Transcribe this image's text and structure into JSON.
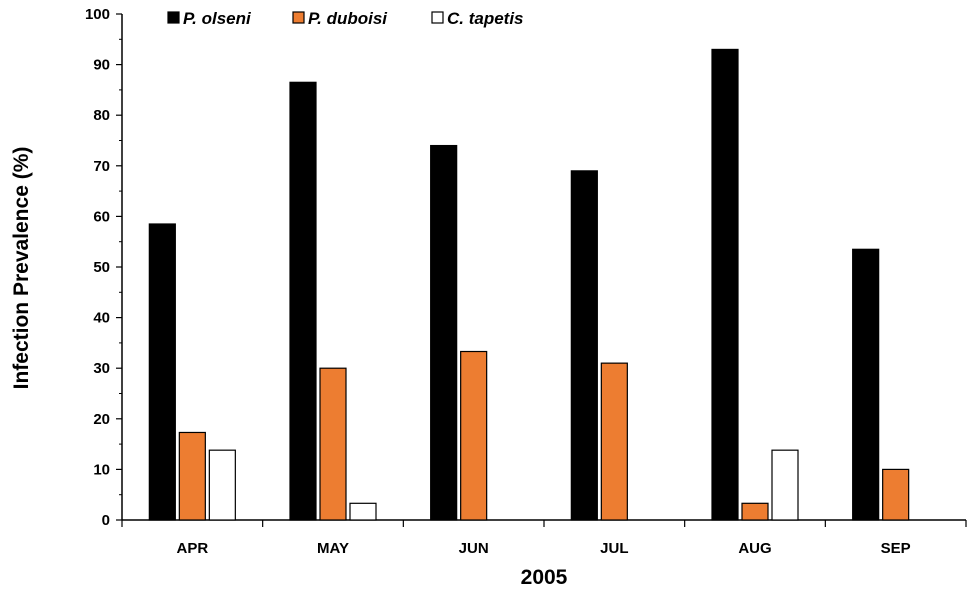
{
  "chart_data": {
    "type": "bar",
    "xlabel": "2005",
    "ylabel": "Infection Prevalence (%)",
    "ylim": [
      0,
      100
    ],
    "yticks": [
      0,
      10,
      20,
      30,
      40,
      50,
      60,
      70,
      80,
      90,
      100
    ],
    "categories": [
      "APR",
      "MAY",
      "JUN",
      "JUL",
      "AUG",
      "SEP"
    ],
    "legend_position": "top",
    "series": [
      {
        "name": "P. olseni",
        "color": "#000000",
        "values": [
          58.5,
          86.5,
          74,
          69,
          93,
          53.5
        ]
      },
      {
        "name": "P. duboisi",
        "color": "#ED7D31",
        "values": [
          17.3,
          30,
          33.3,
          31,
          3.3,
          10
        ]
      },
      {
        "name": "C. tapetis",
        "color": "#FFFFFF",
        "values": [
          13.8,
          3.3,
          0,
          0,
          13.8,
          0
        ]
      }
    ]
  }
}
